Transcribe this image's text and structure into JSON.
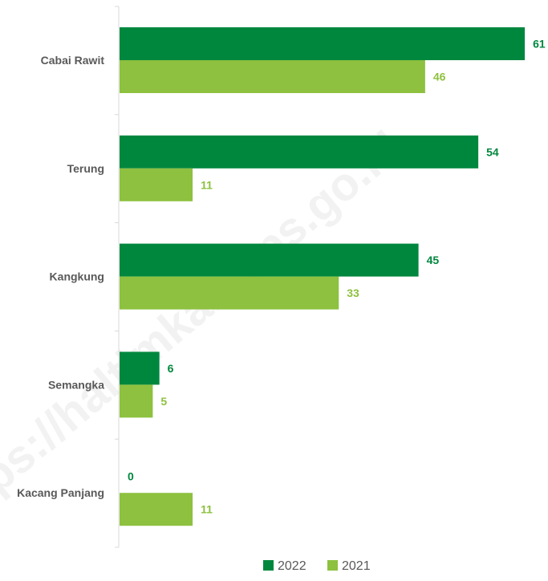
{
  "watermark": "https://haltimkab.bps.go.id",
  "chart_data": {
    "type": "bar",
    "orientation": "horizontal",
    "categories": [
      "Cabai Rawit",
      "Terung",
      "Kangkung",
      "Semangka",
      "Kacang Panjang"
    ],
    "series": [
      {
        "name": "2022",
        "color": "#00873e",
        "values": [
          61,
          54,
          45,
          6,
          0
        ]
      },
      {
        "name": "2021",
        "color": "#8dc13f",
        "values": [
          46,
          11,
          33,
          5,
          11
        ]
      }
    ],
    "xlim": [
      0,
      64
    ],
    "data_labels": true,
    "grid": false,
    "legend_position": "bottom"
  }
}
